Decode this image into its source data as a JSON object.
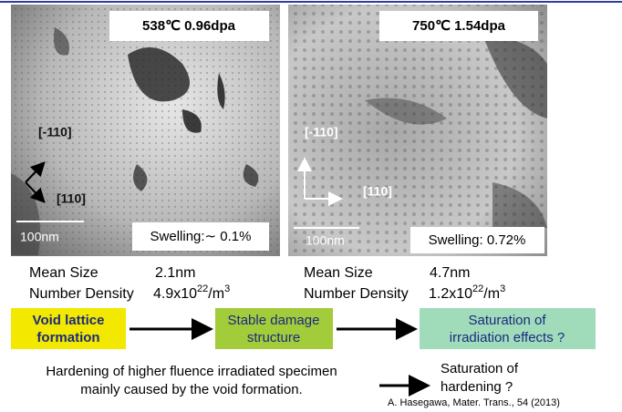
{
  "panels": [
    {
      "label": "538℃  0.96dpa",
      "dir1": "[-110]",
      "dir2": "[110]",
      "scale": "100nm",
      "swelling": "Swelling:∼ 0.1%",
      "mean_size_label": "Mean Size",
      "mean_size": "2.1nm",
      "density_label": "Number Density",
      "density": {
        "mantissa": "4.9x10",
        "exp": "22",
        "unit": "/m",
        "unit_exp": "3"
      }
    },
    {
      "label": "750℃  1.54dpa",
      "dir1": "[-110]",
      "dir2": "[110]",
      "scale": "100nm",
      "swelling": "Swelling: 0.72%",
      "mean_size_label": "Mean Size",
      "mean_size": "4.7nm",
      "density_label": "Number Density",
      "density": {
        "mantissa": "1.2x10",
        "exp": "22",
        "unit": "/m",
        "unit_exp": "3"
      }
    }
  ],
  "flow": [
    {
      "lines": [
        "Void lattice",
        "formation"
      ]
    },
    {
      "lines": [
        "Stable damage",
        "structure"
      ]
    },
    {
      "lines": [
        "Saturation of",
        "irradiation effects ?"
      ]
    }
  ],
  "note": {
    "lines": [
      "Hardening of higher fluence irradiated specimen",
      "mainly  caused by the void formation."
    ]
  },
  "note_result": {
    "lines": [
      "Saturation of",
      "hardening ?"
    ]
  },
  "citation": "A. Hasegawa, Mater. Trans., 54 (2013)"
}
